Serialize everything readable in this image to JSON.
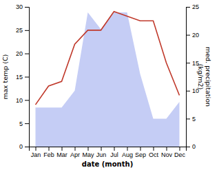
{
  "chart_data": {
    "type": "line",
    "x_label": "date (month)",
    "y_label": "max temp (C)",
    "y2_label": "med. precipitation\n(kg/m2)",
    "categories": [
      "Jan",
      "Feb",
      "Mar",
      "Apr",
      "May",
      "Jun",
      "Jul",
      "Aug",
      "Sep",
      "Oct",
      "Nov",
      "Dec"
    ],
    "series": [
      {
        "type": "area",
        "axis": "y2",
        "color": "#c5cdf5",
        "values": [
          7,
          7,
          7,
          10,
          24,
          21,
          24,
          24,
          13,
          5,
          5,
          8
        ]
      },
      {
        "type": "line",
        "color": "#c0392b",
        "values": [
          9,
          13,
          14,
          22,
          25,
          25,
          29,
          28,
          27,
          27,
          18,
          11
        ]
      }
    ],
    "ylim": [
      0,
      30
    ],
    "yticks": [
      0,
      5,
      10,
      15,
      20,
      25,
      30
    ],
    "y2lim": [
      0,
      25
    ],
    "y2ticks": [
      0,
      5,
      10,
      15,
      20,
      25
    ],
    "grid": false
  }
}
